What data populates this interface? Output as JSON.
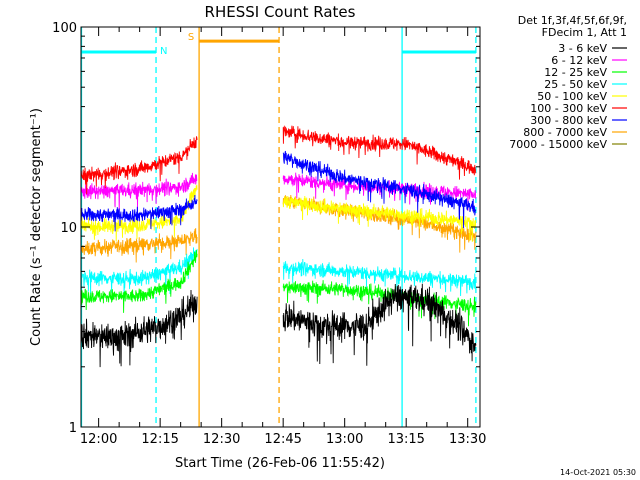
{
  "chart_data": {
    "type": "line",
    "title": "RHESSI Count Rates",
    "xlabel": "Start Time (26-Feb-06 11:55:42)",
    "ylabel": "Count Rate (s⁻¹ detector segment⁻¹)",
    "y_scale": "log",
    "ylim": [
      1,
      100
    ],
    "x_range": [
      "11:55:42",
      "13:33:00"
    ],
    "x_ticks": [
      "12:00",
      "12:15",
      "12:30",
      "12:45",
      "13:00",
      "13:15",
      "13:30"
    ],
    "y_ticks": [
      "1",
      "10",
      "100"
    ],
    "legend": {
      "position": "top-right",
      "header": [
        "Det 1f,3f,4f,5f,6f,9f,",
        "FDecim 1, Att 1"
      ]
    },
    "series": [
      {
        "name": "3 - 6 keV",
        "color": "#000000",
        "segments": [
          {
            "t": [
              "11:55:42",
              "12:05",
              "12:15",
              "12:20",
              "12:24"
            ],
            "y": [
              2.9,
              2.8,
              3.2,
              3.6,
              4.2
            ]
          },
          {
            "t": [
              "12:45",
              "12:55",
              "13:05",
              "13:12",
              "13:20",
              "13:28",
              "13:32"
            ],
            "y": [
              3.6,
              3.2,
              3.2,
              4.5,
              4.3,
              3.2,
              2.5
            ]
          }
        ]
      },
      {
        "name": "6 - 12 keV",
        "color": "#ff00ff",
        "segments": [
          {
            "t": [
              "11:55:42",
              "12:10",
              "12:20",
              "12:24"
            ],
            "y": [
              15.0,
              15.3,
              15.8,
              17.5
            ]
          },
          {
            "t": [
              "12:45",
              "13:00",
              "13:15",
              "13:32"
            ],
            "y": [
              17.5,
              16.2,
              15.5,
              14.5
            ]
          }
        ]
      },
      {
        "name": "12 - 25 keV",
        "color": "#00ff00",
        "segments": [
          {
            "t": [
              "11:55:42",
              "12:10",
              "12:20",
              "12:24"
            ],
            "y": [
              4.5,
              4.5,
              5.3,
              7.3
            ]
          },
          {
            "t": [
              "12:45",
              "13:00",
              "13:15",
              "13:32"
            ],
            "y": [
              5.0,
              4.9,
              4.5,
              4.0
            ]
          }
        ]
      },
      {
        "name": "25 - 50 keV",
        "color": "#00ffff",
        "segments": [
          {
            "t": [
              "11:55:42",
              "12:10",
              "12:20",
              "12:24"
            ],
            "y": [
              5.6,
              5.5,
              6.3,
              7.5
            ]
          },
          {
            "t": [
              "12:45",
              "13:00",
              "13:15",
              "13:32"
            ],
            "y": [
              6.3,
              6.0,
              5.7,
              5.3
            ]
          }
        ]
      },
      {
        "name": "50 - 100 keV",
        "color": "#ffff00",
        "segments": [
          {
            "t": [
              "11:55:42",
              "12:10",
              "12:20",
              "12:24"
            ],
            "y": [
              10.0,
              10.2,
              10.8,
              16.0
            ]
          },
          {
            "t": [
              "12:45",
              "13:00",
              "13:15",
              "13:32"
            ],
            "y": [
              13.5,
              12.3,
              11.5,
              10.5
            ]
          }
        ]
      },
      {
        "name": "100 - 300 keV",
        "color": "#ff0000",
        "segments": [
          {
            "t": [
              "11:55:42",
              "12:10",
              "12:20",
              "12:24"
            ],
            "y": [
              18.0,
              19.5,
              22.5,
              27.5
            ]
          },
          {
            "t": [
              "12:45",
              "13:00",
              "13:15",
              "13:32"
            ],
            "y": [
              30.0,
              26.5,
              26.0,
              19.5
            ]
          }
        ]
      },
      {
        "name": "300 - 800 keV",
        "color": "#0000ff",
        "segments": [
          {
            "t": [
              "11:55:42",
              "12:10",
              "12:20",
              "12:24"
            ],
            "y": [
              11.5,
              11.5,
              12.2,
              13.5
            ]
          },
          {
            "t": [
              "12:45",
              "13:00",
              "13:15",
              "13:32"
            ],
            "y": [
              22.5,
              17.5,
              15.5,
              12.5
            ]
          }
        ]
      },
      {
        "name": "800 - 7000 keV",
        "color": "#ffa500",
        "segments": [
          {
            "t": [
              "11:55:42",
              "12:10",
              "12:20",
              "12:24"
            ],
            "y": [
              7.7,
              8.2,
              8.5,
              9.0
            ]
          },
          {
            "t": [
              "12:45",
              "13:00",
              "13:15",
              "13:32"
            ],
            "y": [
              13.5,
              12.0,
              11.0,
              9.0
            ]
          }
        ]
      },
      {
        "name": "7000 - 15000 keV",
        "color": "#808000",
        "segments": []
      }
    ],
    "annotations": [
      {
        "label": "N",
        "color": "#00ffff",
        "bar_start": "11:55:42",
        "bar_end": "12:14",
        "bar_level": 75,
        "vlines": [
          {
            "t": "11:55:42",
            "style": "solid"
          },
          {
            "t": "12:14",
            "style": "dashed"
          }
        ]
      },
      {
        "label": "S",
        "color": "#ffa500",
        "bar_start": "12:24:30",
        "bar_end": "12:44",
        "bar_level": 85,
        "vlines": [
          {
            "t": "12:24:30",
            "style": "solid"
          },
          {
            "t": "12:44",
            "style": "dashed"
          }
        ]
      },
      {
        "label": "",
        "color": "#00ffff",
        "bar_start": "13:14",
        "bar_end": "13:32",
        "bar_level": 75,
        "vlines": [
          {
            "t": "13:14",
            "style": "solid"
          },
          {
            "t": "13:32",
            "style": "dashed"
          }
        ]
      }
    ],
    "grid": false
  },
  "footer_date": "14-Oct-2021 05:30"
}
